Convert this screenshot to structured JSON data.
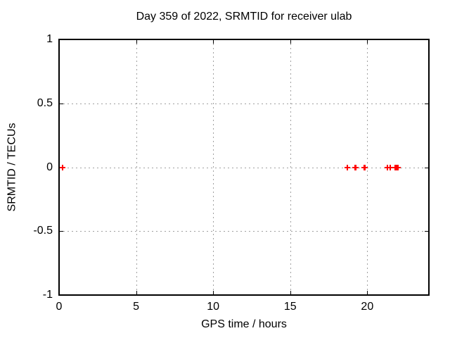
{
  "chart_data": {
    "type": "scatter",
    "title": "Day 359 of 2022, SRMTID for receiver ulab",
    "xlabel": "GPS time / hours",
    "ylabel": "SRMTID / TECUs",
    "xlim": [
      0,
      24
    ],
    "ylim": [
      -1,
      1
    ],
    "xticks": [
      0,
      5,
      10,
      15,
      20
    ],
    "xtick_labels": [
      "0",
      "5",
      "10",
      "15",
      "20"
    ],
    "yticks": [
      -1,
      -0.5,
      0,
      0.5,
      1
    ],
    "ytick_labels": [
      "-1",
      "-0.5",
      "0",
      "0.5",
      "1"
    ],
    "grid": true,
    "legend": false,
    "marker": "plus",
    "series": [
      {
        "name": "SRMTID",
        "color": "#ff0000",
        "points": [
          [
            0.23,
            0.0
          ],
          [
            18.72,
            0.0
          ],
          [
            19.2,
            0.0
          ],
          [
            19.25,
            0.0
          ],
          [
            19.8,
            0.0
          ],
          [
            19.85,
            0.0
          ],
          [
            21.32,
            0.0
          ],
          [
            21.5,
            0.0
          ],
          [
            21.83,
            0.0
          ],
          [
            21.92,
            0.0
          ],
          [
            22.0,
            0.0
          ]
        ]
      }
    ],
    "colors": {
      "background": "#ffffff",
      "border": "#000000",
      "grid": "#a0a0a0",
      "text": "#000000",
      "marker": "#ff0000"
    }
  }
}
